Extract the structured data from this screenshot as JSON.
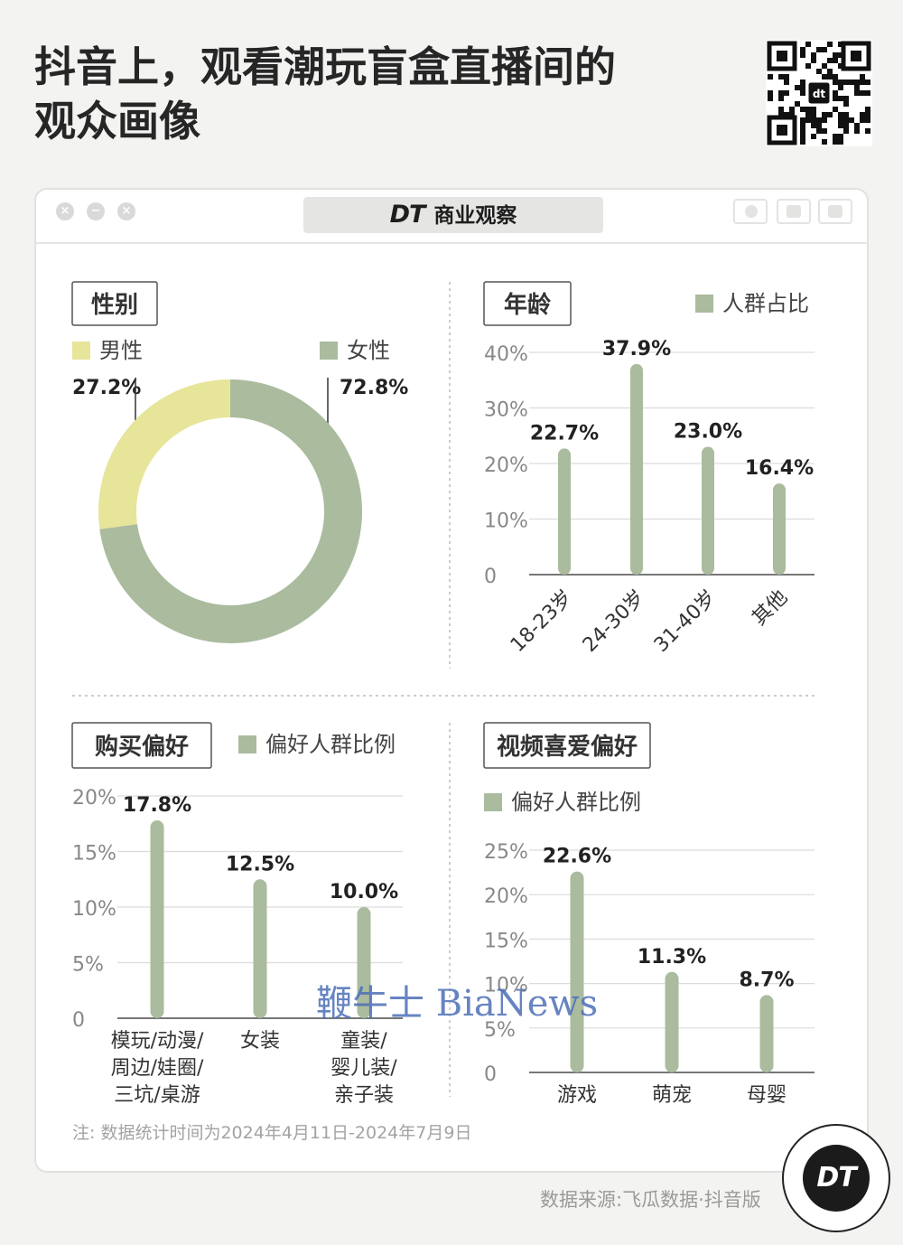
{
  "page": {
    "title_line1": "抖音上，观看潮玩盲盒直播间的",
    "title_line2": "观众画像",
    "brand": "商业观察",
    "brand_logo": "DT",
    "note": "注: 数据统计时间为2024年4月11日-2024年7月9日",
    "source": "数据来源:飞瓜数据·抖音版",
    "badge_logo": "DT",
    "watermark": "鞭牛士 BiaNews"
  },
  "colors": {
    "green": "#aabb9e",
    "yellow": "#e6e59a",
    "grid": "#dcdcdc",
    "axis": "#777777"
  },
  "chart_data": [
    {
      "id": "gender",
      "type": "pie",
      "title": "性别",
      "slices": [
        {
          "label": "男性",
          "value": 27.2,
          "display": "27.2%",
          "color": "#e6e59a"
        },
        {
          "label": "女性",
          "value": 72.8,
          "display": "72.8%",
          "color": "#aabb9e"
        }
      ],
      "donut": true
    },
    {
      "id": "age",
      "type": "bar",
      "title": "年龄",
      "legend": "人群占比",
      "categories": [
        "18-23岁",
        "24-30岁",
        "31-40岁",
        "其他"
      ],
      "values": [
        22.7,
        37.9,
        23.0,
        16.4
      ],
      "labels": [
        "22.7%",
        "37.9%",
        "23.0%",
        "16.4%"
      ],
      "ylim": [
        0,
        40
      ],
      "yticks": [
        0,
        10,
        20,
        30,
        40
      ],
      "ytick_labels": [
        "0",
        "10%",
        "20%",
        "30%",
        "40%"
      ],
      "grid": true
    },
    {
      "id": "purchase",
      "type": "bar",
      "title": "购买偏好",
      "legend": "偏好人群比例",
      "categories": [
        [
          "模玩/动漫/",
          "周边/娃圈/",
          "三坑/桌游"
        ],
        [
          "女装"
        ],
        [
          "童装/",
          "婴儿装/",
          "亲子装"
        ]
      ],
      "values": [
        17.8,
        12.5,
        10.0
      ],
      "labels": [
        "17.8%",
        "12.5%",
        "10.0%"
      ],
      "ylim": [
        0,
        20
      ],
      "yticks": [
        0,
        5,
        10,
        15,
        20
      ],
      "ytick_labels": [
        "0",
        "5%",
        "10%",
        "15%",
        "20%"
      ],
      "grid": true
    },
    {
      "id": "video",
      "type": "bar",
      "title": "视频喜爱偏好",
      "legend": "偏好人群比例",
      "categories": [
        "游戏",
        "萌宠",
        "母婴"
      ],
      "values": [
        22.6,
        11.3,
        8.7
      ],
      "labels": [
        "22.6%",
        "11.3%",
        "8.7%"
      ],
      "ylim": [
        0,
        25
      ],
      "yticks": [
        0,
        5,
        10,
        15,
        20,
        25
      ],
      "ytick_labels": [
        "0",
        "5%",
        "10%",
        "15%",
        "20%",
        "25%"
      ],
      "grid": true
    }
  ]
}
